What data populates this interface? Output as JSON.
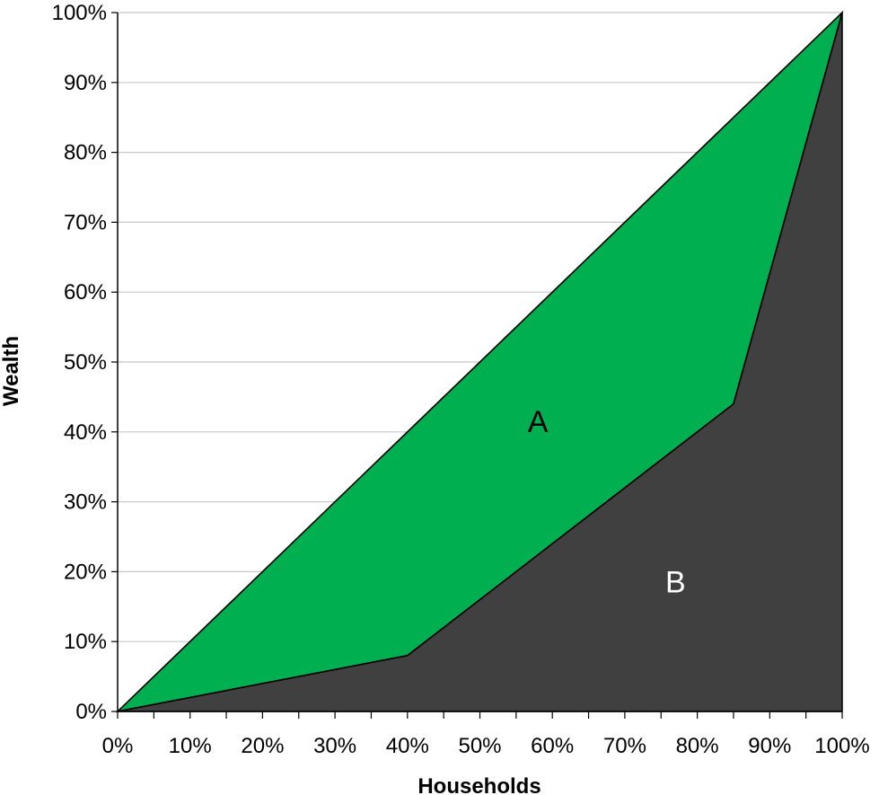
{
  "chart_data": {
    "type": "area",
    "xlabel": "Households",
    "ylabel": "Wealth",
    "xlim": [
      0,
      100
    ],
    "ylim": [
      0,
      100
    ],
    "x_ticks": [
      "0%",
      "10%",
      "20%",
      "30%",
      "40%",
      "50%",
      "60%",
      "70%",
      "80%",
      "90%",
      "100%"
    ],
    "y_ticks": [
      "0%",
      "10%",
      "20%",
      "30%",
      "40%",
      "50%",
      "60%",
      "70%",
      "80%",
      "90%",
      "100%"
    ],
    "grid": "horizontal",
    "series": [
      {
        "x": [
          0,
          100
        ],
        "y": [
          0,
          100
        ]
      },
      {
        "x": [
          0,
          40,
          85,
          100
        ],
        "y": [
          0,
          8,
          44,
          100
        ]
      }
    ],
    "regions": [
      {
        "label": "A",
        "color": "#00b050",
        "label_at": [
          58,
          40
        ],
        "text_color": "#000000"
      },
      {
        "label": "B",
        "color": "#404040",
        "label_at": [
          77,
          17
        ],
        "text_color": "#ffffff"
      }
    ],
    "colors": {
      "grid": "#c8c8c8",
      "axis": "#000000",
      "outline": "#000000"
    }
  }
}
